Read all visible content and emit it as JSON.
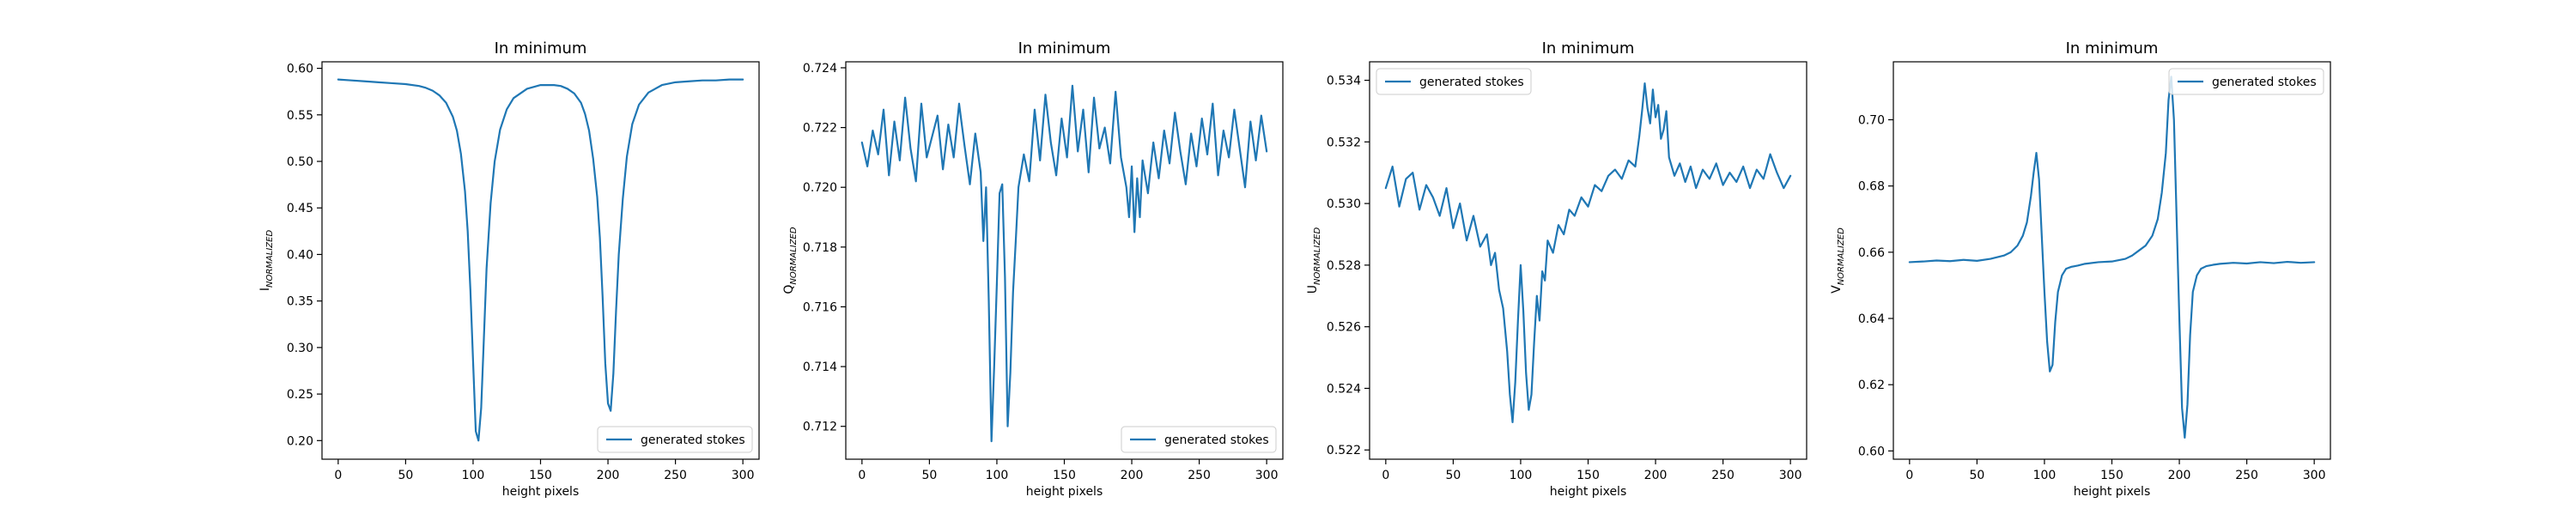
{
  "figure": {
    "background": "#ffffff",
    "line_color": "#1f77b4"
  },
  "chart_data": [
    {
      "type": "line",
      "title": "In minimum",
      "xlabel": "height pixels",
      "ylabel_main": "I",
      "ylabel_sub": "NORMALIZED",
      "xlim": [
        -12,
        312
      ],
      "ylim": [
        0.18,
        0.607
      ],
      "xticks": [
        0,
        50,
        100,
        150,
        200,
        250,
        300
      ],
      "yticks": [
        0.2,
        0.25,
        0.3,
        0.35,
        0.4,
        0.45,
        0.5,
        0.55,
        0.6
      ],
      "ytick_decimals": 2,
      "legend": {
        "label": "generated stokes",
        "position": "lower right"
      },
      "series": [
        {
          "name": "generated stokes",
          "x": [
            0,
            10,
            20,
            30,
            40,
            50,
            60,
            65,
            70,
            75,
            80,
            85,
            88,
            91,
            94,
            96,
            98,
            100,
            102,
            104,
            106,
            108,
            110,
            113,
            116,
            120,
            125,
            130,
            140,
            150,
            160,
            165,
            170,
            175,
            180,
            183,
            186,
            189,
            192,
            194,
            196,
            198,
            200,
            202,
            204,
            206,
            208,
            211,
            214,
            218,
            223,
            230,
            240,
            250,
            260,
            270,
            280,
            290,
            300
          ],
          "y": [
            0.588,
            0.587,
            0.586,
            0.585,
            0.584,
            0.583,
            0.581,
            0.579,
            0.576,
            0.571,
            0.563,
            0.548,
            0.533,
            0.508,
            0.468,
            0.425,
            0.362,
            0.285,
            0.21,
            0.2,
            0.235,
            0.31,
            0.385,
            0.455,
            0.5,
            0.534,
            0.556,
            0.568,
            0.578,
            0.582,
            0.582,
            0.581,
            0.578,
            0.573,
            0.563,
            0.551,
            0.533,
            0.503,
            0.462,
            0.418,
            0.355,
            0.283,
            0.24,
            0.232,
            0.272,
            0.34,
            0.4,
            0.46,
            0.505,
            0.54,
            0.561,
            0.574,
            0.582,
            0.585,
            0.586,
            0.587,
            0.587,
            0.588,
            0.588
          ]
        }
      ]
    },
    {
      "type": "line",
      "title": "In minimum",
      "xlabel": "height pixels",
      "ylabel_main": "Q",
      "ylabel_sub": "NORMALIZED",
      "xlim": [
        -12,
        312
      ],
      "ylim": [
        0.7109,
        0.7242
      ],
      "xticks": [
        0,
        50,
        100,
        150,
        200,
        250,
        300
      ],
      "yticks": [
        0.712,
        0.714,
        0.716,
        0.718,
        0.72,
        0.722,
        0.724
      ],
      "ytick_decimals": 3,
      "legend": {
        "label": "generated stokes",
        "position": "lower right"
      },
      "series": [
        {
          "name": "generated stokes",
          "x": [
            0,
            4,
            8,
            12,
            16,
            20,
            24,
            28,
            32,
            36,
            40,
            44,
            48,
            52,
            56,
            60,
            64,
            68,
            72,
            76,
            80,
            84,
            88,
            90,
            92,
            94,
            96,
            98,
            100,
            102,
            104,
            106,
            108,
            110,
            112,
            114,
            116,
            120,
            124,
            128,
            132,
            136,
            140,
            144,
            148,
            152,
            156,
            160,
            164,
            168,
            172,
            176,
            180,
            184,
            188,
            192,
            196,
            198,
            200,
            202,
            204,
            206,
            208,
            212,
            216,
            220,
            224,
            228,
            232,
            236,
            240,
            244,
            248,
            252,
            256,
            260,
            264,
            268,
            272,
            276,
            280,
            284,
            288,
            292,
            296,
            300
          ],
          "y": [
            0.7215,
            0.7207,
            0.7219,
            0.7211,
            0.7226,
            0.7204,
            0.7222,
            0.7209,
            0.723,
            0.7213,
            0.7202,
            0.7228,
            0.721,
            0.7217,
            0.7224,
            0.7206,
            0.7221,
            0.721,
            0.7228,
            0.7214,
            0.7201,
            0.7218,
            0.7205,
            0.7182,
            0.72,
            0.7162,
            0.7115,
            0.714,
            0.7168,
            0.7198,
            0.7201,
            0.717,
            0.712,
            0.7138,
            0.7165,
            0.7182,
            0.72,
            0.7211,
            0.7202,
            0.7226,
            0.7209,
            0.7231,
            0.7215,
            0.7204,
            0.7223,
            0.721,
            0.7234,
            0.7212,
            0.7226,
            0.7205,
            0.723,
            0.7213,
            0.722,
            0.7208,
            0.7232,
            0.721,
            0.72,
            0.719,
            0.7207,
            0.7185,
            0.7203,
            0.719,
            0.7209,
            0.7198,
            0.7215,
            0.7203,
            0.7219,
            0.7208,
            0.7225,
            0.7212,
            0.7201,
            0.7218,
            0.7207,
            0.7223,
            0.7211,
            0.7228,
            0.7204,
            0.7219,
            0.721,
            0.7226,
            0.7213,
            0.72,
            0.7222,
            0.7209,
            0.7224,
            0.7212
          ]
        }
      ]
    },
    {
      "type": "line",
      "title": "In minimum",
      "xlabel": "height pixels",
      "ylabel_main": "U",
      "ylabel_sub": "NORMALIZED",
      "xlim": [
        -12,
        312
      ],
      "ylim": [
        0.5217,
        0.5346
      ],
      "xticks": [
        0,
        50,
        100,
        150,
        200,
        250,
        300
      ],
      "yticks": [
        0.522,
        0.524,
        0.526,
        0.528,
        0.53,
        0.532,
        0.534
      ],
      "ytick_decimals": 3,
      "legend": {
        "label": "generated stokes",
        "position": "upper left"
      },
      "series": [
        {
          "name": "generated stokes",
          "x": [
            0,
            5,
            10,
            15,
            20,
            25,
            30,
            35,
            40,
            45,
            50,
            55,
            60,
            65,
            70,
            75,
            78,
            81,
            84,
            87,
            90,
            92,
            94,
            96,
            98,
            100,
            102,
            104,
            106,
            108,
            110,
            112,
            114,
            116,
            118,
            120,
            124,
            128,
            132,
            136,
            140,
            145,
            150,
            155,
            160,
            165,
            170,
            175,
            180,
            185,
            188,
            190,
            192,
            194,
            196,
            198,
            200,
            202,
            204,
            206,
            208,
            210,
            214,
            218,
            222,
            226,
            230,
            235,
            240,
            245,
            250,
            255,
            260,
            265,
            270,
            275,
            280,
            285,
            290,
            295,
            300
          ],
          "y": [
            0.5305,
            0.5312,
            0.5299,
            0.5308,
            0.531,
            0.5298,
            0.5306,
            0.5302,
            0.5296,
            0.5305,
            0.5292,
            0.53,
            0.5288,
            0.5296,
            0.5286,
            0.529,
            0.528,
            0.5284,
            0.5272,
            0.5266,
            0.5252,
            0.5238,
            0.5229,
            0.5242,
            0.5262,
            0.528,
            0.5265,
            0.5245,
            0.5233,
            0.5238,
            0.5255,
            0.527,
            0.5262,
            0.5278,
            0.5275,
            0.5288,
            0.5284,
            0.5293,
            0.529,
            0.5298,
            0.5296,
            0.5302,
            0.5299,
            0.5306,
            0.5304,
            0.5309,
            0.5311,
            0.5308,
            0.5314,
            0.5312,
            0.5322,
            0.533,
            0.5339,
            0.5331,
            0.5326,
            0.5337,
            0.5328,
            0.5332,
            0.5321,
            0.5324,
            0.533,
            0.5315,
            0.5309,
            0.5313,
            0.5307,
            0.5312,
            0.5305,
            0.5311,
            0.5308,
            0.5313,
            0.5306,
            0.531,
            0.5307,
            0.5312,
            0.5305,
            0.5311,
            0.5308,
            0.5316,
            0.531,
            0.5305,
            0.5309
          ]
        }
      ]
    },
    {
      "type": "line",
      "title": "In minimum",
      "xlabel": "height pixels",
      "ylabel_main": "V",
      "ylabel_sub": "NORMALIZED",
      "xlim": [
        -12,
        312
      ],
      "ylim": [
        0.5975,
        0.7175
      ],
      "xticks": [
        0,
        50,
        100,
        150,
        200,
        250,
        300
      ],
      "yticks": [
        0.6,
        0.62,
        0.64,
        0.66,
        0.68,
        0.7
      ],
      "ytick_decimals": 2,
      "legend": {
        "label": "generated stokes",
        "position": "upper right"
      },
      "series": [
        {
          "name": "generated stokes",
          "x": [
            0,
            10,
            20,
            30,
            40,
            50,
            60,
            70,
            75,
            80,
            84,
            87,
            90,
            92,
            94,
            96,
            98,
            100,
            102,
            104,
            106,
            108,
            110,
            113,
            116,
            120,
            125,
            130,
            140,
            150,
            160,
            165,
            170,
            175,
            180,
            184,
            187,
            190,
            192,
            194,
            196,
            198,
            200,
            202,
            204,
            206,
            208,
            210,
            213,
            216,
            220,
            225,
            230,
            240,
            250,
            260,
            270,
            280,
            290,
            300
          ],
          "y": [
            0.657,
            0.6572,
            0.6575,
            0.6573,
            0.6577,
            0.6574,
            0.658,
            0.659,
            0.66,
            0.662,
            0.665,
            0.669,
            0.677,
            0.684,
            0.69,
            0.682,
            0.665,
            0.648,
            0.633,
            0.624,
            0.626,
            0.639,
            0.648,
            0.653,
            0.655,
            0.6556,
            0.656,
            0.6565,
            0.657,
            0.6572,
            0.658,
            0.659,
            0.6605,
            0.662,
            0.665,
            0.67,
            0.678,
            0.69,
            0.706,
            0.713,
            0.7,
            0.67,
            0.64,
            0.613,
            0.604,
            0.614,
            0.635,
            0.648,
            0.653,
            0.655,
            0.6558,
            0.6562,
            0.6565,
            0.6568,
            0.6566,
            0.657,
            0.6567,
            0.6571,
            0.6568,
            0.657
          ]
        }
      ]
    }
  ]
}
